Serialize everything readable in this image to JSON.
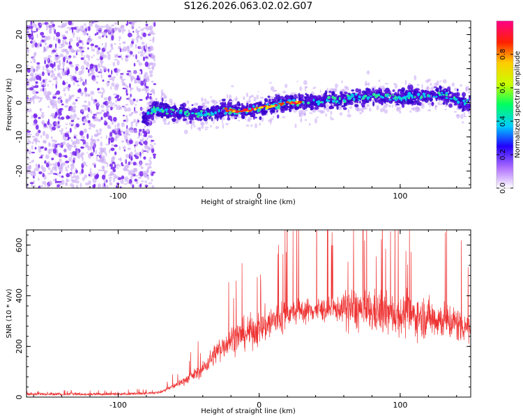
{
  "title": "S126.2026.063.02.02.G07",
  "colors": {
    "snr_line": "#ee3333",
    "spectrogram_main": "#7722ee",
    "spectrogram_faint": "#c8a8f5",
    "axis": "#000000"
  },
  "chart_data": [
    {
      "type": "heatmap",
      "name": "spectrogram",
      "xlabel": "Height of straight line (km)",
      "ylabel": "Frequency (Hz)",
      "xlim": [
        -165,
        150
      ],
      "ylim": [
        -25,
        24
      ],
      "xticks": [
        -100,
        0,
        100
      ],
      "yticks": [
        -20,
        -10,
        0,
        10,
        20
      ],
      "colorbar": {
        "label": "Normalized spectral amplitude",
        "range": [
          0.0,
          1.0
        ],
        "ticks": [
          0.0,
          0.2,
          0.4,
          0.6,
          0.8
        ]
      },
      "trace": {
        "x": [
          -82,
          -75,
          -60,
          -45,
          -35,
          -25,
          -15,
          -5,
          0,
          10,
          20,
          30,
          40,
          55,
          70,
          85,
          100,
          115,
          130,
          145
        ],
        "y": [
          -5,
          -2,
          -2.5,
          -3.5,
          -3,
          -2,
          -2.5,
          -2,
          -1.5,
          -1,
          0,
          0,
          0.5,
          1,
          1.5,
          2,
          1.5,
          2,
          2.5,
          0
        ]
      },
      "noise_region_x": [
        -165,
        -80
      ]
    },
    {
      "type": "line",
      "name": "snr",
      "xlabel": "Height of straight line (km)",
      "ylabel": "SNR (10 * v/v)",
      "xlim": [
        -165,
        150
      ],
      "ylim": [
        0,
        660
      ],
      "xticks": [
        -100,
        0,
        100
      ],
      "yticks": [
        0,
        200,
        400,
        600
      ],
      "series": [
        {
          "name": "SNR",
          "x": [
            -165,
            -100,
            -80,
            -70,
            -60,
            -50,
            -40,
            -30,
            -20,
            -10,
            0,
            10,
            20,
            30,
            40,
            50,
            60,
            70,
            80,
            90,
            100,
            110,
            120,
            130,
            140,
            150
          ],
          "y": [
            12,
            12,
            15,
            20,
            45,
            75,
            110,
            180,
            230,
            250,
            270,
            300,
            330,
            340,
            345,
            345,
            350,
            345,
            335,
            330,
            325,
            320,
            315,
            305,
            290,
            280
          ]
        }
      ]
    }
  ]
}
